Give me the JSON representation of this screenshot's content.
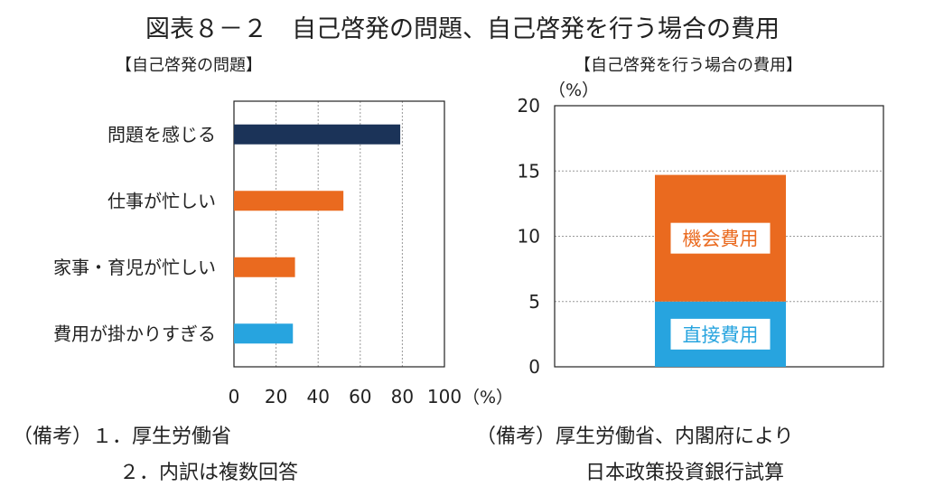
{
  "title": "図表８－２　自己啓発の問題、自己啓発を行う場合の費用",
  "colors": {
    "navy": "#1b3358",
    "orange": "#ea6a1f",
    "light_blue": "#27a4df",
    "grid": "#999999",
    "frame": "#222222"
  },
  "chart_data": [
    {
      "type": "bar",
      "orientation": "horizontal",
      "title": "【自己啓発の問題】",
      "categories": [
        "問題を感じる",
        "仕事が忙しい",
        "家事・育児が忙しい",
        "費用が掛かりすぎる"
      ],
      "values": [
        79,
        52,
        29,
        28
      ],
      "bar_colors": [
        "#1b3358",
        "#ea6a1f",
        "#ea6a1f",
        "#27a4df"
      ],
      "xlim": [
        0,
        100
      ],
      "xticks": [
        "0",
        "20",
        "40",
        "60",
        "80",
        "100"
      ],
      "unit": "（%）",
      "grid": true
    },
    {
      "type": "bar",
      "orientation": "vertical",
      "stacked": true,
      "title": "【自己啓発を行う場合の費用】",
      "series": [
        {
          "name": "直接費用",
          "values": [
            5.0
          ],
          "color": "#27a4df"
        },
        {
          "name": "機会費用",
          "values": [
            9.7
          ],
          "color": "#ea6a1f"
        }
      ],
      "ylim": [
        0,
        20
      ],
      "yticks": [
        "0",
        "5",
        "10",
        "15",
        "20"
      ],
      "unit": "（%）",
      "grid": true
    }
  ],
  "notes": {
    "left": [
      "（備考）１．厚生労働省",
      "２．内訳は複数回答"
    ],
    "right": [
      "（備考）厚生労働省、内閣府により",
      "日本政策投資銀行試算"
    ]
  }
}
